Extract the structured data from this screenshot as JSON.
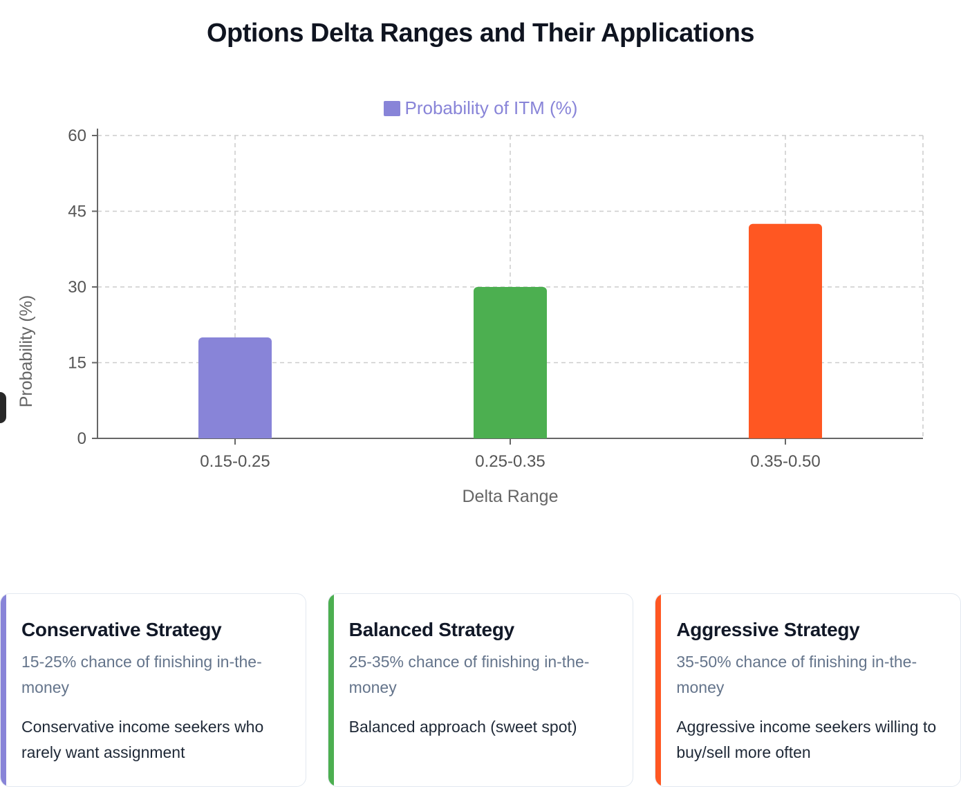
{
  "page": {
    "title": "Options Delta Ranges and Their Applications"
  },
  "legend": {
    "label": "Probability of ITM (%)",
    "color": "#8884d8"
  },
  "chart_data": {
    "type": "bar",
    "title": "Options Delta Ranges and Their Applications",
    "categories": [
      "0.15-0.25",
      "0.25-0.35",
      "0.35-0.50"
    ],
    "series": [
      {
        "name": "Probability of ITM (%)",
        "values": [
          20,
          30,
          42.5
        ]
      }
    ],
    "bar_colors": [
      "#8884d8",
      "#4caf50",
      "#ff5722"
    ],
    "xlabel": "Delta Range",
    "ylabel": "Probability (%)",
    "ylim": [
      0,
      60
    ],
    "yticks": [
      0,
      15,
      30,
      45,
      60
    ],
    "grid": true,
    "grid_style": "dashed",
    "legend_position": "top",
    "colors": {
      "axis": "#666666",
      "tick_text": "#555555",
      "grid": "#cccccc",
      "axis_label": "#666666"
    }
  },
  "cards": [
    {
      "accent_color": "#8884d8",
      "title": "Conservative Strategy",
      "subtitle": "15-25% chance of finishing in-the-money",
      "description": "Conservative income seekers who rarely want assignment"
    },
    {
      "accent_color": "#4caf50",
      "title": "Balanced Strategy",
      "subtitle": "25-35% chance of finishing in-the-money",
      "description": "Balanced approach (sweet spot)"
    },
    {
      "accent_color": "#ff5722",
      "title": "Aggressive Strategy",
      "subtitle": "35-50% chance of finishing in-the-money",
      "description": "Aggressive income seekers willing to buy/sell more often"
    }
  ],
  "edge_widget": {
    "color": "#282828"
  }
}
